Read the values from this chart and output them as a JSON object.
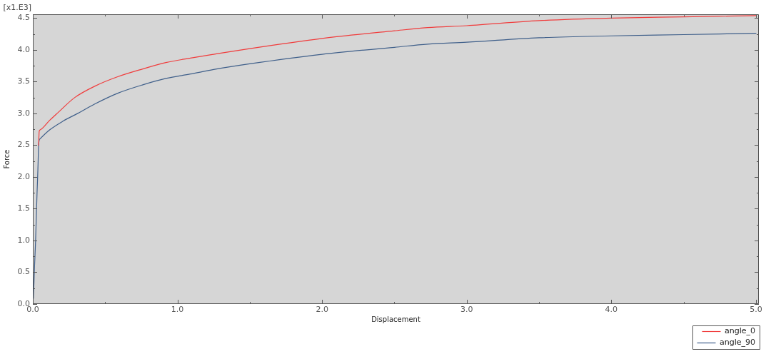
{
  "chart_data": {
    "type": "line",
    "xlabel": "Displacement",
    "ylabel": "Force",
    "annotations": [
      "[x1.E3]"
    ],
    "xlim": [
      0,
      5.02
    ],
    "ylim": [
      0,
      4.56
    ],
    "xticks": [
      {
        "value": 0,
        "label": "0.0"
      },
      {
        "value": 0.5,
        "label": null
      },
      {
        "value": 1,
        "label": "1.0"
      },
      {
        "value": 1.5,
        "label": null
      },
      {
        "value": 2,
        "label": "2.0"
      },
      {
        "value": 2.5,
        "label": null
      },
      {
        "value": 3,
        "label": "3.0"
      },
      {
        "value": 3.5,
        "label": null
      },
      {
        "value": 4,
        "label": "4.0"
      },
      {
        "value": 4.5,
        "label": null
      },
      {
        "value": 5,
        "label": "5.0"
      }
    ],
    "yticks": [
      {
        "value": 0,
        "label": "0.0"
      },
      {
        "value": 0.25,
        "label": null
      },
      0.5,
      {
        "value": 0.75,
        "label": null
      },
      {
        "value": 1,
        "label": "1.0"
      },
      {
        "value": 1.25,
        "label": null
      },
      1.5,
      {
        "value": 1.75,
        "label": null
      },
      {
        "value": 2,
        "label": "2.0"
      },
      {
        "value": 2.25,
        "label": null
      },
      2.5,
      {
        "value": 2.75,
        "label": null
      },
      {
        "value": 3,
        "label": "3.0"
      },
      {
        "value": 3.25,
        "label": null
      },
      3.5,
      {
        "value": 3.75,
        "label": null
      },
      {
        "value": 4,
        "label": "4.0"
      },
      {
        "value": 4.25,
        "label": null
      },
      4.5
    ],
    "legend": "bottom right",
    "series": [
      {
        "name": "angle_0",
        "color": "#f03c3c",
        "x": [
          0.04,
          0.044,
          0.05,
          0.116,
          0.168,
          0.29,
          0.43,
          0.59,
          0.76,
          0.92,
          1.09,
          1.25,
          1.5,
          2,
          2.5,
          2.73,
          3,
          3.5,
          4,
          4.5,
          5
        ],
        "values": [
          2.5,
          2.72,
          2.74,
          2.89,
          3.0,
          3.25,
          3.43,
          3.58,
          3.7,
          3.8,
          3.87,
          3.93,
          4.02,
          4.18,
          4.3,
          4.35,
          4.38,
          4.46,
          4.5,
          4.52,
          4.54
        ]
      },
      {
        "name": "angle_90",
        "color": "#3f5f8a",
        "x": [
          0.004,
          0.012,
          0.019,
          0.024,
          0.029,
          0.035,
          0.04,
          0.044,
          0.05,
          0.116,
          0.21,
          0.31,
          0.43,
          0.59,
          0.76,
          0.92,
          1.09,
          1.25,
          1.5,
          2,
          2.5,
          2.73,
          3,
          3.5,
          4,
          4.5,
          5
        ],
        "values": [
          0.09,
          0.61,
          0.99,
          1.37,
          1.74,
          2.12,
          2.5,
          2.58,
          2.6,
          2.74,
          2.88,
          3.0,
          3.15,
          3.32,
          3.45,
          3.55,
          3.62,
          3.69,
          3.78,
          3.93,
          4.04,
          4.09,
          4.12,
          4.19,
          4.22,
          4.24,
          4.26
        ]
      }
    ]
  }
}
